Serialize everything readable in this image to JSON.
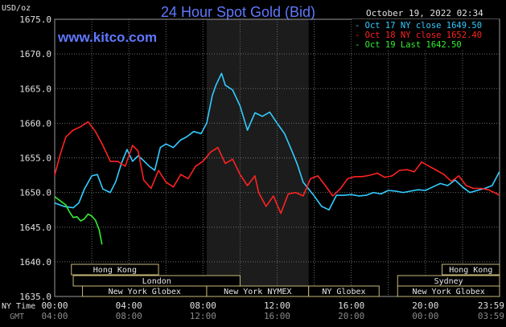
{
  "chart_data": {
    "type": "line",
    "title": "24 Hour Spot Gold (Bid)",
    "site": "www.kitco.com",
    "date_stamp": "October 19, 2022 02:34",
    "ylabel": "USD/oz",
    "ylim": [
      1635.0,
      1675.0
    ],
    "y_ticks": [
      "1675.0",
      "1670.0",
      "1665.0",
      "1660.0",
      "1655.0",
      "1650.0",
      "1645.0",
      "1640.0",
      "1635.0"
    ],
    "x_axis_label_ny": "NY Time",
    "x_axis_label_gmt": "GMT",
    "x_ticks_ny": [
      "00:00",
      "04:00",
      "08:00",
      "12:00",
      "16:00",
      "20:00",
      "23:59"
    ],
    "x_ticks_gmt": [
      "04:00",
      "08:00",
      "12:00",
      "16:00",
      "20:00",
      "00:00",
      "03:59"
    ],
    "xlim_hours": [
      0,
      24
    ],
    "grid": true,
    "shaded_region_hours": [
      8.2,
      13.7
    ],
    "legend": [
      {
        "label": "Oct 17 NY close 1649.50",
        "color": "#33ccff"
      },
      {
        "label": "Oct 18 NY close 1652.40",
        "color": "#ff2222"
      },
      {
        "label": "Oct 19 Last 1642.50",
        "color": "#33ee33"
      }
    ],
    "sessions": [
      {
        "label": "Hong Kong",
        "row": 0,
        "start": 0.9,
        "end": 5.6
      },
      {
        "label": "Hong Kong",
        "row": 0,
        "start": 20.9,
        "end": 24.0
      },
      {
        "label": "London",
        "row": 1,
        "start": 1.0,
        "end": 10.0
      },
      {
        "label": "Sydney",
        "row": 1,
        "start": 18.5,
        "end": 24.0
      },
      {
        "label": "New York Globex",
        "row": 2,
        "start": 1.5,
        "end": 8.2
      },
      {
        "label": "New York NYMEX",
        "row": 2,
        "start": 8.2,
        "end": 13.7
      },
      {
        "label": "NY Globex",
        "row": 2,
        "start": 13.7,
        "end": 17.5
      },
      {
        "label": "New York Globex",
        "row": 2,
        "start": 18.5,
        "end": 24.0
      }
    ],
    "series": [
      {
        "color": "#33ccff",
        "x": [
          0.0,
          0.5,
          1.0,
          1.3,
          1.6,
          2.0,
          2.3,
          2.6,
          3.0,
          3.3,
          3.6,
          3.9,
          4.2,
          4.5,
          4.8,
          5.1,
          5.4,
          5.7,
          6.0,
          6.4,
          6.8,
          7.1,
          7.5,
          7.9,
          8.2,
          8.5,
          8.7,
          9.0,
          9.2,
          9.6,
          10.0,
          10.4,
          10.8,
          11.2,
          11.6,
          12.0,
          12.4,
          12.8,
          13.1,
          13.4,
          13.7,
          14.0,
          14.4,
          14.8,
          15.2,
          15.6,
          16.0,
          16.4,
          16.8,
          17.2,
          17.6,
          18.0,
          18.4,
          18.8,
          19.2,
          19.6,
          20.0,
          20.4,
          20.8,
          21.2,
          21.6,
          22.0,
          22.4,
          22.8,
          23.2,
          23.6,
          23.99
        ],
        "y": [
          1648.5,
          1648.0,
          1647.8,
          1648.5,
          1650.5,
          1652.4,
          1652.6,
          1650.5,
          1650.0,
          1651.6,
          1654.2,
          1656.2,
          1654.5,
          1655.3,
          1654.6,
          1653.8,
          1653.2,
          1656.5,
          1657.0,
          1656.5,
          1657.6,
          1658.0,
          1658.8,
          1658.5,
          1660.0,
          1664.0,
          1665.5,
          1667.2,
          1665.5,
          1664.8,
          1662.5,
          1659.0,
          1661.5,
          1661.0,
          1661.6,
          1660.0,
          1658.5,
          1656.0,
          1654.0,
          1651.5,
          1650.5,
          1649.5,
          1648.0,
          1647.5,
          1649.6,
          1649.6,
          1649.7,
          1649.5,
          1649.6,
          1650.0,
          1649.8,
          1650.3,
          1650.2,
          1650.0,
          1650.2,
          1650.4,
          1650.3,
          1650.8,
          1651.3,
          1651.0,
          1651.8,
          1650.8,
          1650.0,
          1650.3,
          1650.6,
          1651.0,
          1653.0
        ]
      },
      {
        "color": "#ff2222",
        "x": [
          0.0,
          0.3,
          0.6,
          1.0,
          1.4,
          1.8,
          2.2,
          2.6,
          3.0,
          3.4,
          3.8,
          4.2,
          4.5,
          4.8,
          5.2,
          5.6,
          6.0,
          6.4,
          6.8,
          7.2,
          7.6,
          8.0,
          8.4,
          8.8,
          9.2,
          9.6,
          10.0,
          10.4,
          10.8,
          11.0,
          11.4,
          11.8,
          12.2,
          12.6,
          13.0,
          13.4,
          13.8,
          14.2,
          14.6,
          15.0,
          15.4,
          15.8,
          16.2,
          16.6,
          17.0,
          17.4,
          17.8,
          18.2,
          18.6,
          19.0,
          19.4,
          19.8,
          20.2,
          20.6,
          21.0,
          21.4,
          21.8,
          22.2,
          22.6,
          23.0,
          23.4,
          23.8,
          23.99
        ],
        "y": [
          1652.5,
          1655.5,
          1658.0,
          1659.0,
          1659.5,
          1660.2,
          1658.8,
          1656.8,
          1654.5,
          1654.5,
          1653.8,
          1656.8,
          1656.0,
          1651.8,
          1650.6,
          1653.2,
          1651.5,
          1650.8,
          1652.6,
          1652.0,
          1653.8,
          1654.5,
          1655.8,
          1656.5,
          1654.2,
          1654.8,
          1652.6,
          1651.0,
          1652.4,
          1650.0,
          1648.0,
          1649.5,
          1647.0,
          1649.8,
          1650.0,
          1649.5,
          1652.0,
          1652.4,
          1651.0,
          1649.5,
          1650.5,
          1652.0,
          1652.3,
          1652.3,
          1652.5,
          1652.8,
          1652.2,
          1652.4,
          1653.2,
          1653.3,
          1653.0,
          1654.4,
          1653.8,
          1653.2,
          1652.6,
          1651.6,
          1652.4,
          1651.0,
          1650.6,
          1650.6,
          1650.4,
          1649.9,
          1649.6
        ]
      },
      {
        "color": "#33ee33",
        "x": [
          0.0,
          0.2,
          0.4,
          0.6,
          0.8,
          1.0,
          1.2,
          1.4,
          1.6,
          1.8,
          2.0,
          2.2,
          2.4,
          2.55
        ],
        "y": [
          1649.4,
          1649.0,
          1648.6,
          1648.2,
          1647.2,
          1646.4,
          1646.5,
          1645.9,
          1646.2,
          1646.9,
          1646.6,
          1646.0,
          1644.6,
          1642.5
        ]
      }
    ]
  }
}
